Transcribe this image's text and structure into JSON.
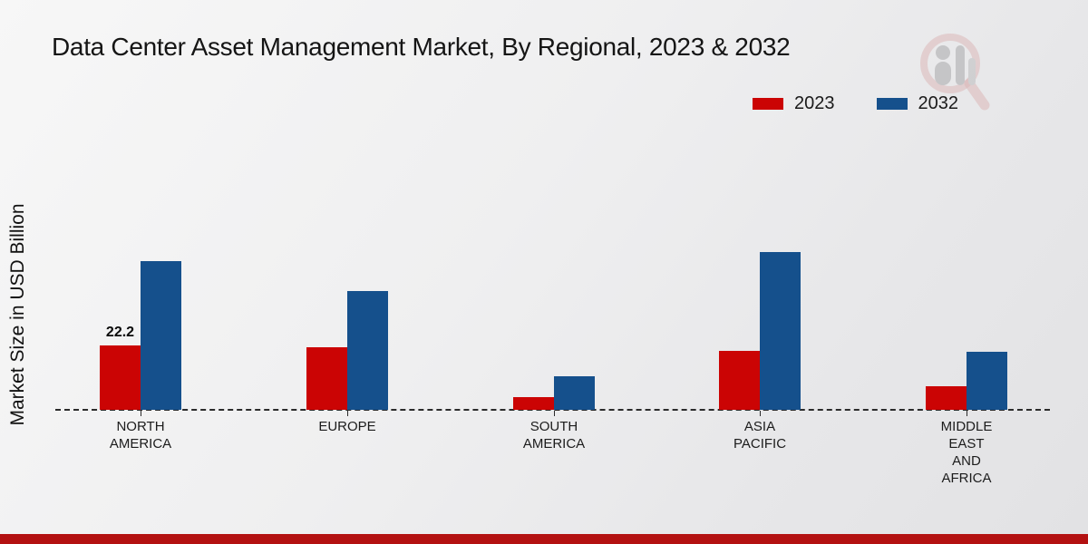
{
  "page": {
    "title": "Data Center Asset Management Market, By Regional, 2023 & 2032",
    "y_axis_label": "Market Size in USD Billion"
  },
  "footer": {
    "stripe_color": "#b31111"
  },
  "chart_data": {
    "type": "bar",
    "title": "Data Center Asset Management Market, By Regional, 2023 & 2032",
    "xlabel": "",
    "ylabel": "Market Size in USD Billion",
    "unit": "USD Billion",
    "categories": [
      {
        "label": "North America",
        "lines": [
          "NORTH",
          "AMERICA"
        ]
      },
      {
        "label": "Europe",
        "lines": [
          "EUROPE"
        ]
      },
      {
        "label": "South America",
        "lines": [
          "SOUTH",
          "AMERICA"
        ]
      },
      {
        "label": "Asia Pacific",
        "lines": [
          "ASIA",
          "PACIFIC"
        ]
      },
      {
        "label": "Middle East and Africa",
        "lines": [
          "MIDDLE",
          "EAST",
          "AND",
          "AFRICA"
        ]
      }
    ],
    "series": [
      {
        "name": "2023",
        "color": "#cb0404",
        "values": [
          22.2,
          21.6,
          4.3,
          20.4,
          8.0
        ]
      },
      {
        "name": "2032",
        "color": "#15508c",
        "values": [
          51.3,
          41.0,
          11.5,
          54.3,
          20.0
        ]
      }
    ],
    "annotations": [
      {
        "series": "2023",
        "category": "North America",
        "text": "22.2"
      }
    ],
    "ylim": [
      0,
      60
    ],
    "grid": false,
    "legend_position": "top-right",
    "baseline_style": "dashed"
  }
}
